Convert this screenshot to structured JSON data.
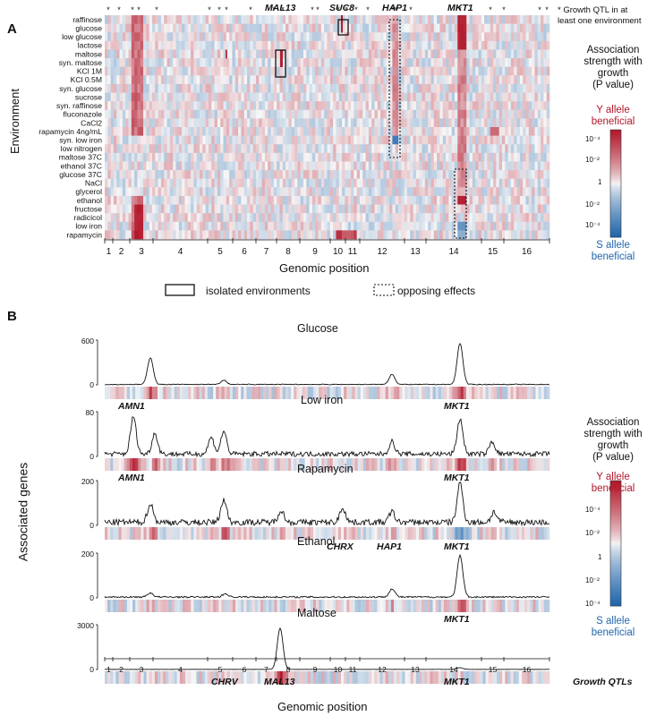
{
  "panelA": {
    "label": "A",
    "y_axis_title": "Environment",
    "x_axis_title": "Genomic position",
    "footnote_line1": "* Growth QTL in at",
    "footnote_line2": "least one environment",
    "environments": [
      "raffinose",
      "glucose",
      "low glucose",
      "lactose",
      "maltose",
      "syn. maltose",
      "KCl 1M",
      "KCl 0.5M",
      "syn. glucose",
      "sucrose",
      "syn. raffinose",
      "fluconazole",
      "CaCl2",
      "rapamycin 4ng/mL",
      "syn. low iron",
      "low nitrogen",
      "maltose 37C",
      "ethanol 37C",
      "glucose 37C",
      "NaCl",
      "glycerol",
      "ethanol",
      "fructose",
      "radicicol",
      "low iron",
      "rapamycin"
    ],
    "chromosomes": [
      "1",
      "2",
      "3",
      "4",
      "5",
      "6",
      "7",
      "8",
      "9",
      "10",
      "11",
      "12",
      "13",
      "14",
      "15",
      "16"
    ],
    "gene_labels": [
      "MAL13",
      "SUC8",
      "HAP1",
      "MKT1"
    ],
    "legend_solid": "isolated environments",
    "legend_dotted": "opposing effects"
  },
  "panelB": {
    "label": "B",
    "y_axis_title": "Associated genes",
    "x_axis_title": "Genomic position",
    "right_label": "Growth QTLs",
    "chromosomes": [
      "1",
      "2",
      "3",
      "4",
      "5",
      "6",
      "7",
      "8",
      "9",
      "10",
      "11",
      "12",
      "13",
      "14",
      "15",
      "16"
    ],
    "tracks": [
      {
        "title": "Glucose",
        "ymax": "600",
        "ymin": "0",
        "genes": [
          "AMN1",
          "MKT1"
        ]
      },
      {
        "title": "Low iron",
        "ymax": "80",
        "ymin": "0",
        "genes": [
          "AMN1",
          "MKT1"
        ]
      },
      {
        "title": "Rapamycin",
        "ymax": "200",
        "ymin": "0",
        "genes": [
          "CHRX",
          "HAP1",
          "MKT1"
        ]
      },
      {
        "title": "Ethanol",
        "ymax": "200",
        "ymin": "0",
        "genes": [
          "MKT1"
        ]
      },
      {
        "title": "Maltose",
        "ymax": "3000",
        "ymin": "0",
        "genes": [
          "CHRV",
          "MAL13",
          "MKT1"
        ]
      }
    ]
  },
  "legend": {
    "title_line1": "Association",
    "title_line2": "strength with",
    "title_line3": "growth",
    "title_line4": "(P value)",
    "y_line1": "Y allele",
    "y_line2": "beneficial",
    "s_line1": "S allele",
    "s_line2": "beneficial",
    "ticks": [
      "10⁻⁴",
      "10⁻²",
      "1",
      "10⁻²",
      "10⁻⁴"
    ],
    "color_y": "#b2182b",
    "color_s": "#2166ac"
  },
  "chart_data": [
    {
      "type": "heatmap",
      "xlabel": "Genomic position",
      "ylabel": "Environment",
      "rows": [
        "raffinose",
        "glucose",
        "low glucose",
        "lactose",
        "maltose",
        "syn. maltose",
        "KCl 1M",
        "KCl 0.5M",
        "syn. glucose",
        "sucrose",
        "syn. raffinose",
        "fluconazole",
        "CaCl2",
        "rapamycin 4ng/mL",
        "syn. low iron",
        "low nitrogen",
        "maltose 37C",
        "ethanol 37C",
        "glucose 37C",
        "NaCl",
        "glycerol",
        "ethanol",
        "fructose",
        "radicicol",
        "low iron",
        "rapamycin"
      ],
      "columns": [
        "1",
        "2",
        "3",
        "4",
        "5",
        "6",
        "7",
        "8",
        "9",
        "10",
        "11",
        "12",
        "13",
        "14",
        "15",
        "16"
      ]
    },
    {
      "type": "line",
      "xlabel": "Genomic position",
      "ylabel": "Associated genes",
      "series": [
        {
          "name": "Glucose",
          "ylim": [
            0,
            600
          ]
        },
        {
          "name": "Low iron",
          "ylim": [
            0,
            80
          ]
        },
        {
          "name": "Rapamycin",
          "ylim": [
            0,
            200
          ]
        },
        {
          "name": "Ethanol",
          "ylim": [
            0,
            200
          ]
        },
        {
          "name": "Maltose",
          "ylim": [
            0,
            3000
          ]
        }
      ]
    }
  ]
}
